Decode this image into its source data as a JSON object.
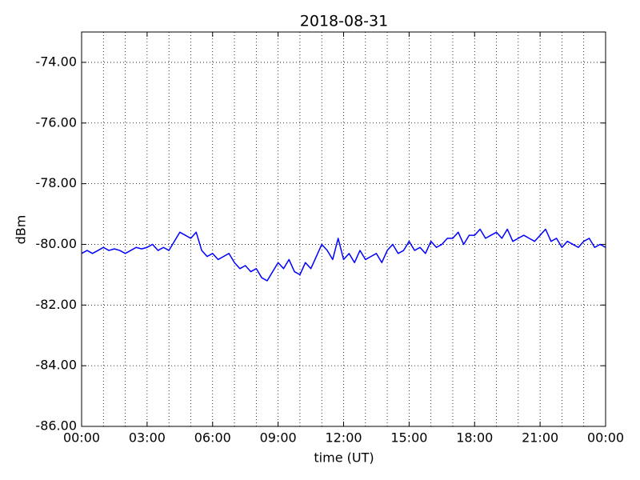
{
  "chart_data": {
    "type": "line",
    "title": "2018-08-31",
    "xlabel": "time (UT)",
    "ylabel": "dBm",
    "x": [
      0,
      0.25,
      0.5,
      0.75,
      1,
      1.25,
      1.5,
      1.75,
      2,
      2.25,
      2.5,
      2.75,
      3,
      3.25,
      3.5,
      3.75,
      4,
      4.25,
      4.5,
      4.75,
      5,
      5.25,
      5.5,
      5.75,
      6,
      6.25,
      6.5,
      6.75,
      7,
      7.25,
      7.5,
      7.75,
      8,
      8.25,
      8.5,
      8.75,
      9,
      9.25,
      9.5,
      9.75,
      10,
      10.25,
      10.5,
      10.75,
      11,
      11.25,
      11.5,
      11.75,
      12,
      12.25,
      12.5,
      12.75,
      13,
      13.25,
      13.5,
      13.75,
      14,
      14.25,
      14.5,
      14.75,
      15,
      15.25,
      15.5,
      15.75,
      16,
      16.25,
      16.5,
      16.75,
      17,
      17.25,
      17.5,
      17.75,
      18,
      18.25,
      18.5,
      18.75,
      19,
      19.25,
      19.5,
      19.75,
      20,
      20.25,
      20.5,
      20.75,
      21,
      21.25,
      21.5,
      21.75,
      22,
      22.25,
      22.5,
      22.75,
      23,
      23.25,
      23.5,
      23.75,
      24
    ],
    "series": [
      {
        "color": "#0000ff",
        "values": [
          -80.3,
          -80.2,
          -80.3,
          -80.2,
          -80.1,
          -80.2,
          -80.15,
          -80.2,
          -80.3,
          -80.2,
          -80.1,
          -80.15,
          -80.1,
          -80.0,
          -80.2,
          -80.1,
          -80.2,
          -79.9,
          -79.6,
          -79.7,
          -79.8,
          -79.6,
          -80.2,
          -80.4,
          -80.3,
          -80.5,
          -80.4,
          -80.3,
          -80.6,
          -80.8,
          -80.7,
          -80.9,
          -80.8,
          -81.1,
          -81.2,
          -80.9,
          -80.6,
          -80.8,
          -80.5,
          -80.9,
          -81.0,
          -80.6,
          -80.8,
          -80.4,
          -80.0,
          -80.2,
          -80.5,
          -79.8,
          -80.5,
          -80.3,
          -80.6,
          -80.2,
          -80.5,
          -80.4,
          -80.3,
          -80.6,
          -80.2,
          -80.0,
          -80.3,
          -80.2,
          -79.9,
          -80.2,
          -80.1,
          -80.3,
          -79.9,
          -80.1,
          -80.0,
          -79.8,
          -79.8,
          -79.6,
          -80.0,
          -79.7,
          -79.7,
          -79.5,
          -79.8,
          -79.7,
          -79.6,
          -79.8,
          -79.5,
          -79.9,
          -79.8,
          -79.7,
          -79.8,
          -79.9,
          -79.7,
          -79.5,
          -79.9,
          -79.8,
          -80.1,
          -79.9,
          -80.0,
          -80.1,
          -79.9,
          -79.8,
          -80.1,
          -80.0,
          -80.1
        ]
      }
    ],
    "xlim": [
      0,
      24
    ],
    "xticks": [
      {
        "value": 0,
        "label": "00:00"
      },
      {
        "value": 3,
        "label": "03:00"
      },
      {
        "value": 6,
        "label": "06:00"
      },
      {
        "value": 9,
        "label": "09:00"
      },
      {
        "value": 12,
        "label": "12:00"
      },
      {
        "value": 15,
        "label": "15:00"
      },
      {
        "value": 18,
        "label": "18:00"
      },
      {
        "value": 21,
        "label": "21:00"
      },
      {
        "value": 24,
        "label": "00:00"
      }
    ],
    "xminorticks": [
      1,
      2,
      4,
      5,
      7,
      8,
      10,
      11,
      13,
      14,
      16,
      17,
      19,
      20,
      22,
      23
    ],
    "ylim": [
      -86,
      -73
    ],
    "yticks": [
      {
        "value": -86,
        "label": "-86.00"
      },
      {
        "value": -84,
        "label": "-84.00"
      },
      {
        "value": -82,
        "label": "-82.00"
      },
      {
        "value": -80,
        "label": "-80.00"
      },
      {
        "value": -78,
        "label": "-78.00"
      },
      {
        "value": -76,
        "label": "-76.00"
      },
      {
        "value": -74,
        "label": "-74.00"
      }
    ],
    "grid": true
  }
}
